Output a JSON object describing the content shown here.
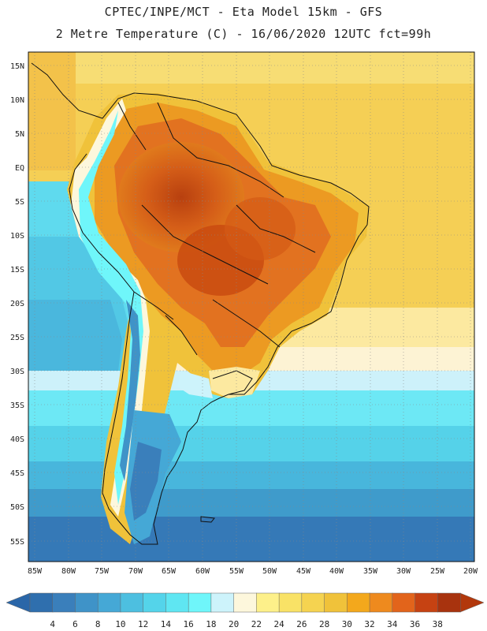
{
  "header": {
    "line1": "CPTEC/INPE/MCT -  Eta Model 15km - GFS",
    "line2": "2 Metre Temperature (C) - 16/06/2020 12UTC fct=99h"
  },
  "map": {
    "lat_ticks": [
      "15N",
      "10N",
      "5N",
      "EQ",
      "5S",
      "10S",
      "15S",
      "20S",
      "25S",
      "30S",
      "35S",
      "40S",
      "45S",
      "50S",
      "55S"
    ],
    "lon_ticks": [
      "85W",
      "80W",
      "75W",
      "70W",
      "65W",
      "60W",
      "55W",
      "50W",
      "45W",
      "40W",
      "35W",
      "30W",
      "25W",
      "20W"
    ]
  },
  "colorbar": {
    "labels": [
      "4",
      "6",
      "8",
      "10",
      "12",
      "14",
      "16",
      "18",
      "20",
      "22",
      "24",
      "26",
      "28",
      "30",
      "32",
      "34",
      "36",
      "38"
    ],
    "colors": [
      "#2f6fae",
      "#3a7fbb",
      "#3f93c8",
      "#45a8d6",
      "#4dbfe0",
      "#54d4ea",
      "#5fe6f2",
      "#6ff6fa",
      "#cdf3fb",
      "#fdf7dc",
      "#fdf08a",
      "#f9e266",
      "#f5d350",
      "#f0c23a",
      "#f3a81c",
      "#ee8a1e",
      "#e2641b",
      "#c64212",
      "#a8330e"
    ],
    "under_color": "#2a66a8",
    "over_color": "#b2380c"
  }
}
